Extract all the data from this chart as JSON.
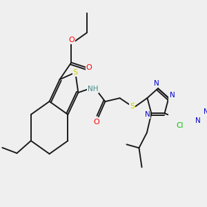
{
  "background_color": "#efefef",
  "bond_color": "#1a1a1a",
  "colors": {
    "O": "#ff0000",
    "N": "#0000cd",
    "S": "#cccc00",
    "Cl": "#00bb00",
    "H": "#448888",
    "C": "#1a1a1a"
  },
  "figsize": [
    3.0,
    3.0
  ],
  "dpi": 100
}
